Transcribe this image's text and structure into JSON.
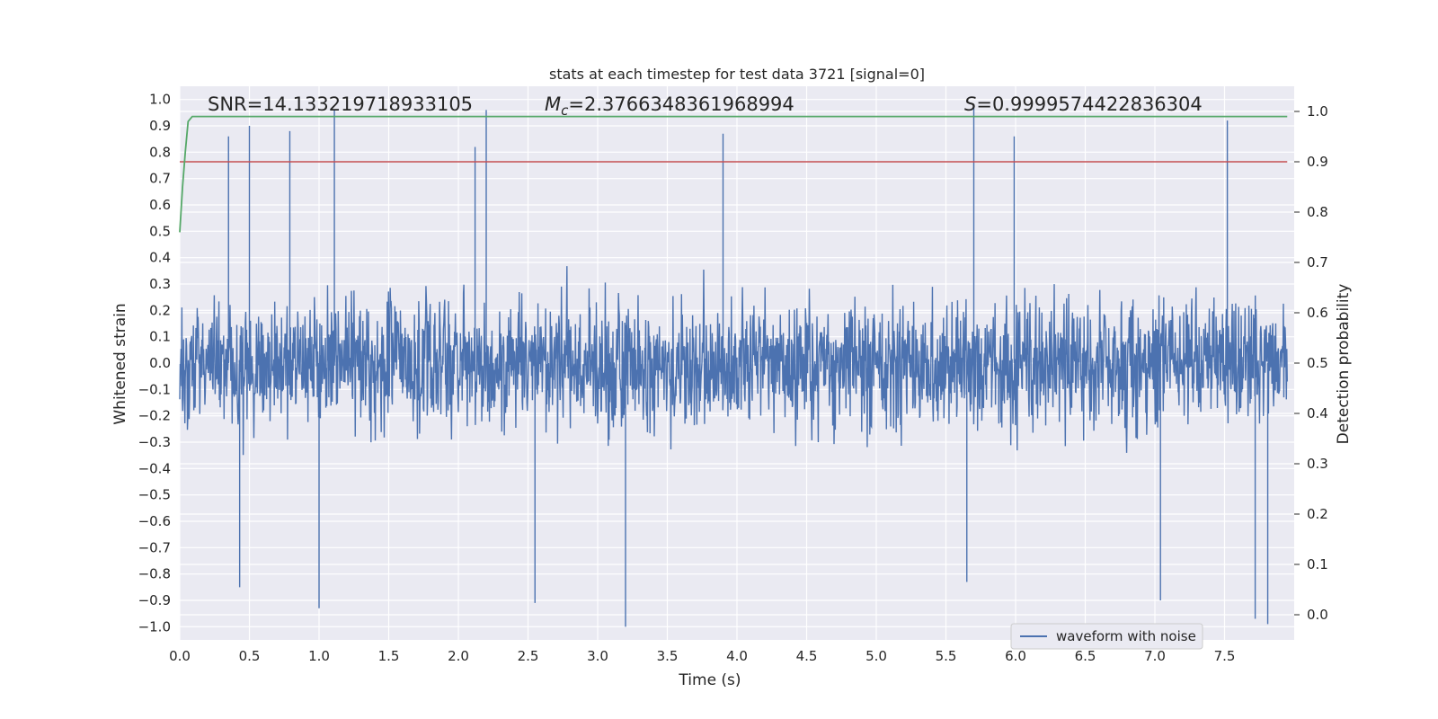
{
  "chart_data": {
    "type": "line",
    "title": "stats at each timestep for test data 3721 [signal=0]",
    "xlabel": "Time (s)",
    "ylabel_left": "Whitened strain",
    "ylabel_right": "Detection probability",
    "xlim": [
      0,
      8
    ],
    "ylim_left": [
      -1.05,
      1.05
    ],
    "ylim_right": [
      -0.05,
      1.05
    ],
    "x_ticks": [
      "0.0",
      "0.5",
      "1.0",
      "1.5",
      "2.0",
      "2.5",
      "3.0",
      "3.5",
      "4.0",
      "4.5",
      "5.0",
      "5.5",
      "6.0",
      "6.5",
      "7.0",
      "7.5"
    ],
    "y_ticks_left": [
      "1.0",
      "0.9",
      "0.8",
      "0.7",
      "0.6",
      "0.5",
      "0.4",
      "0.3",
      "0.2",
      "0.1",
      "0.0",
      "−0.1",
      "−0.2",
      "−0.3",
      "−0.4",
      "−0.5",
      "−0.6",
      "−0.7",
      "−0.8",
      "−0.9",
      "−1.0"
    ],
    "y_ticks_right": [
      "1.0",
      "0.9",
      "0.8",
      "0.7",
      "0.6",
      "0.5",
      "0.4",
      "0.3",
      "0.2",
      "0.1",
      "0.0"
    ],
    "annotations": {
      "snr": "SNR=14.133219718933105",
      "mc_label": "M",
      "mc_sub": "c",
      "mc_value": "=2.3766348361968994",
      "s_label": "S",
      "s_value": "=0.9999574422836304"
    },
    "legend": {
      "label": "waveform with noise",
      "placement": "lower-right"
    },
    "colors": {
      "background": "#eaeaf2",
      "grid": "#ffffff",
      "waveform": "#4c72b0",
      "probability": "#55a868",
      "threshold": "#c44e52"
    },
    "series": [
      {
        "name": "waveform with noise",
        "axis": "left",
        "kind": "noise",
        "t_start": 0.0,
        "t_end": 7.95,
        "typical_amplitude": 0.5,
        "spikes": [
          {
            "t": 0.35,
            "v": 0.86
          },
          {
            "t": 0.5,
            "v": 0.9
          },
          {
            "t": 0.79,
            "v": 0.88
          },
          {
            "t": 1.11,
            "v": 0.96
          },
          {
            "t": 2.12,
            "v": 0.82
          },
          {
            "t": 2.2,
            "v": 0.96
          },
          {
            "t": 3.9,
            "v": 0.87
          },
          {
            "t": 5.7,
            "v": 0.97
          },
          {
            "t": 5.99,
            "v": 0.86
          },
          {
            "t": 7.52,
            "v": 0.92
          },
          {
            "t": 0.43,
            "v": -0.85
          },
          {
            "t": 0.43,
            "v": -0.85
          },
          {
            "t": 0.43,
            "v": -0.85
          },
          {
            "t": 0.43,
            "v": -0.85
          },
          {
            "t": 0.43,
            "v": -0.85
          },
          {
            "t": 0.43,
            "v": -0.85
          },
          {
            "t": 0.43,
            "v": -0.85
          },
          {
            "t": 0.43,
            "v": -0.85
          },
          {
            "t": 0.43,
            "v": -0.85
          },
          {
            "t": 0.43,
            "v": -0.85
          },
          {
            "t": 0.43,
            "v": -0.85
          },
          {
            "t": 0.43,
            "v": -0.85
          },
          {
            "t": 0.43,
            "v": -0.85
          },
          {
            "t": 0.43,
            "v": -0.85
          },
          {
            "t": 0.43,
            "v": -0.85
          },
          {
            "t": 0.43,
            "v": -0.85
          },
          {
            "t": 0.43,
            "v": -0.85
          },
          {
            "t": 0.43,
            "v": -0.85
          },
          {
            "t": 0.43,
            "v": -0.85
          },
          {
            "t": 0.43,
            "v": -0.85
          },
          {
            "t": 0.43,
            "v": -0.85
          },
          {
            "t": 0.43,
            "v": -0.85
          },
          {
            "t": 0.43,
            "v": -0.85
          },
          {
            "t": 0.43,
            "v": -0.85
          }
        ]
      },
      {
        "name": "detection probability",
        "axis": "right",
        "x": [
          0.0,
          0.02,
          0.04,
          0.06,
          0.09,
          0.15,
          0.3,
          1.0,
          2.0,
          3.0,
          4.0,
          5.0,
          6.0,
          7.0,
          7.95
        ],
        "y": [
          0.76,
          0.85,
          0.92,
          0.98,
          0.99,
          0.99,
          0.99,
          0.99,
          0.99,
          0.99,
          0.99,
          0.99,
          0.99,
          0.99,
          0.99
        ]
      },
      {
        "name": "threshold",
        "axis": "right",
        "x": [
          0.0,
          7.95
        ],
        "y": [
          0.9,
          0.9
        ]
      }
    ]
  }
}
